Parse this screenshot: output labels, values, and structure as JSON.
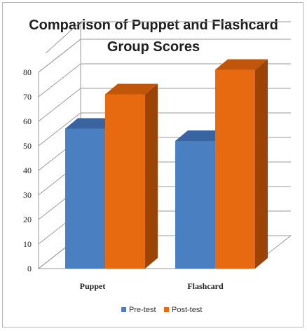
{
  "chart_data": {
    "type": "bar",
    "title_lines": [
      "Comparison of Puppet and Flashcard",
      "Group Scores"
    ],
    "categories": [
      "Puppet",
      "Flashcard"
    ],
    "series": [
      {
        "name": "Pre-test",
        "values": [
          57,
          52
        ],
        "color": "#4a7fc1",
        "top_color": "#3a64a0",
        "side_color": "#2e5285"
      },
      {
        "name": "Post-test",
        "values": [
          71,
          81
        ],
        "color": "#e86a10",
        "top_color": "#c0560a",
        "side_color": "#9c4408"
      }
    ],
    "y_ticks": [
      "0",
      "10",
      "20",
      "30",
      "40",
      "50",
      "60",
      "70",
      "80"
    ],
    "ylim": [
      0,
      80
    ],
    "grid": true,
    "legend_position": "bottom"
  }
}
